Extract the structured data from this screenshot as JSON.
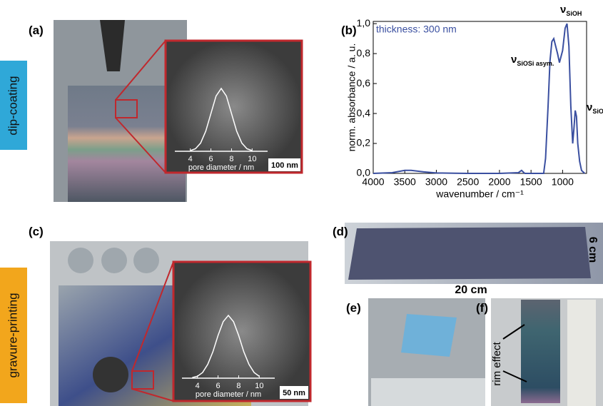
{
  "panels": {
    "a": "(a)",
    "b": "(b)",
    "c": "(c)",
    "d": "(d)",
    "e": "(e)",
    "f": "(f)"
  },
  "methods": {
    "dip": "dip-coating",
    "gravure": "gravure-printing"
  },
  "inset_a": {
    "scale": "100 nm",
    "xlabel": "pore diameter / nm",
    "xticks": [
      4,
      6,
      8,
      10
    ],
    "xlim": [
      2.5,
      11.5
    ],
    "x": [
      4,
      4.5,
      5,
      5.5,
      6,
      6.5,
      7,
      7.5,
      8,
      8.5,
      9,
      9.5,
      10
    ],
    "values": [
      0.01,
      0.04,
      0.13,
      0.32,
      0.6,
      0.88,
      1.0,
      0.88,
      0.6,
      0.32,
      0.13,
      0.04,
      0.01
    ]
  },
  "inset_c": {
    "scale": "50 nm",
    "xlabel": "pore diameter / nm",
    "xticks": [
      4,
      6,
      8,
      10
    ],
    "xlim": [
      2.5,
      11.5
    ],
    "x": [
      3.5,
      4,
      4.5,
      5,
      5.5,
      6,
      6.5,
      7,
      7.5,
      8,
      8.5,
      9,
      9.5,
      10
    ],
    "values": [
      0.01,
      0.03,
      0.09,
      0.22,
      0.42,
      0.68,
      0.9,
      1.0,
      0.9,
      0.68,
      0.42,
      0.22,
      0.09,
      0.03
    ]
  },
  "chart_data": {
    "type": "line",
    "xlabel": "wavenumber / cm⁻¹",
    "ylabel": "norm. absorbance / a. u.",
    "annotation": "thickness: 300 nm",
    "color": "#3a4fa0",
    "x": [
      4000,
      3700,
      3500,
      3400,
      3200,
      3000,
      2500,
      2000,
      1700,
      1650,
      1600,
      1300,
      1270,
      1230,
      1200,
      1170,
      1140,
      1110,
      1080,
      1050,
      1000,
      960,
      930,
      900,
      870,
      840,
      820,
      800,
      780,
      760,
      730,
      700,
      650
    ],
    "values": [
      0,
      0.005,
      0.02,
      0.02,
      0.01,
      0.003,
      0,
      0,
      0.005,
      0.02,
      0,
      0,
      0.1,
      0.45,
      0.75,
      0.88,
      0.9,
      0.85,
      0.8,
      0.74,
      0.82,
      0.97,
      1.0,
      0.85,
      0.45,
      0.2,
      0.3,
      0.42,
      0.38,
      0.2,
      0.08,
      0.02,
      0
    ],
    "xlim": [
      4000,
      620
    ],
    "ylim": [
      0,
      1.015
    ],
    "xticks": [
      4000,
      3500,
      3000,
      2500,
      2000,
      1500,
      1000
    ],
    "yticks": [
      {
        "value": 0,
        "label": "0,0"
      },
      {
        "value": 0.2,
        "label": "0,2"
      },
      {
        "value": 0.4,
        "label": "0,4"
      },
      {
        "value": 0.6,
        "label": "0,6"
      },
      {
        "value": 0.8,
        "label": "0,8"
      },
      {
        "value": 1,
        "label": "1,0"
      }
    ],
    "peaks": [
      {
        "symbol": "ν",
        "sub": "SiOH"
      },
      {
        "symbol": "ν",
        "sub": "SiOSi asym."
      },
      {
        "symbol": "ν",
        "sub": "SiO"
      }
    ]
  },
  "d": {
    "width": "20 cm",
    "height": "6 cm"
  },
  "f": {
    "rim": "rim effect"
  }
}
